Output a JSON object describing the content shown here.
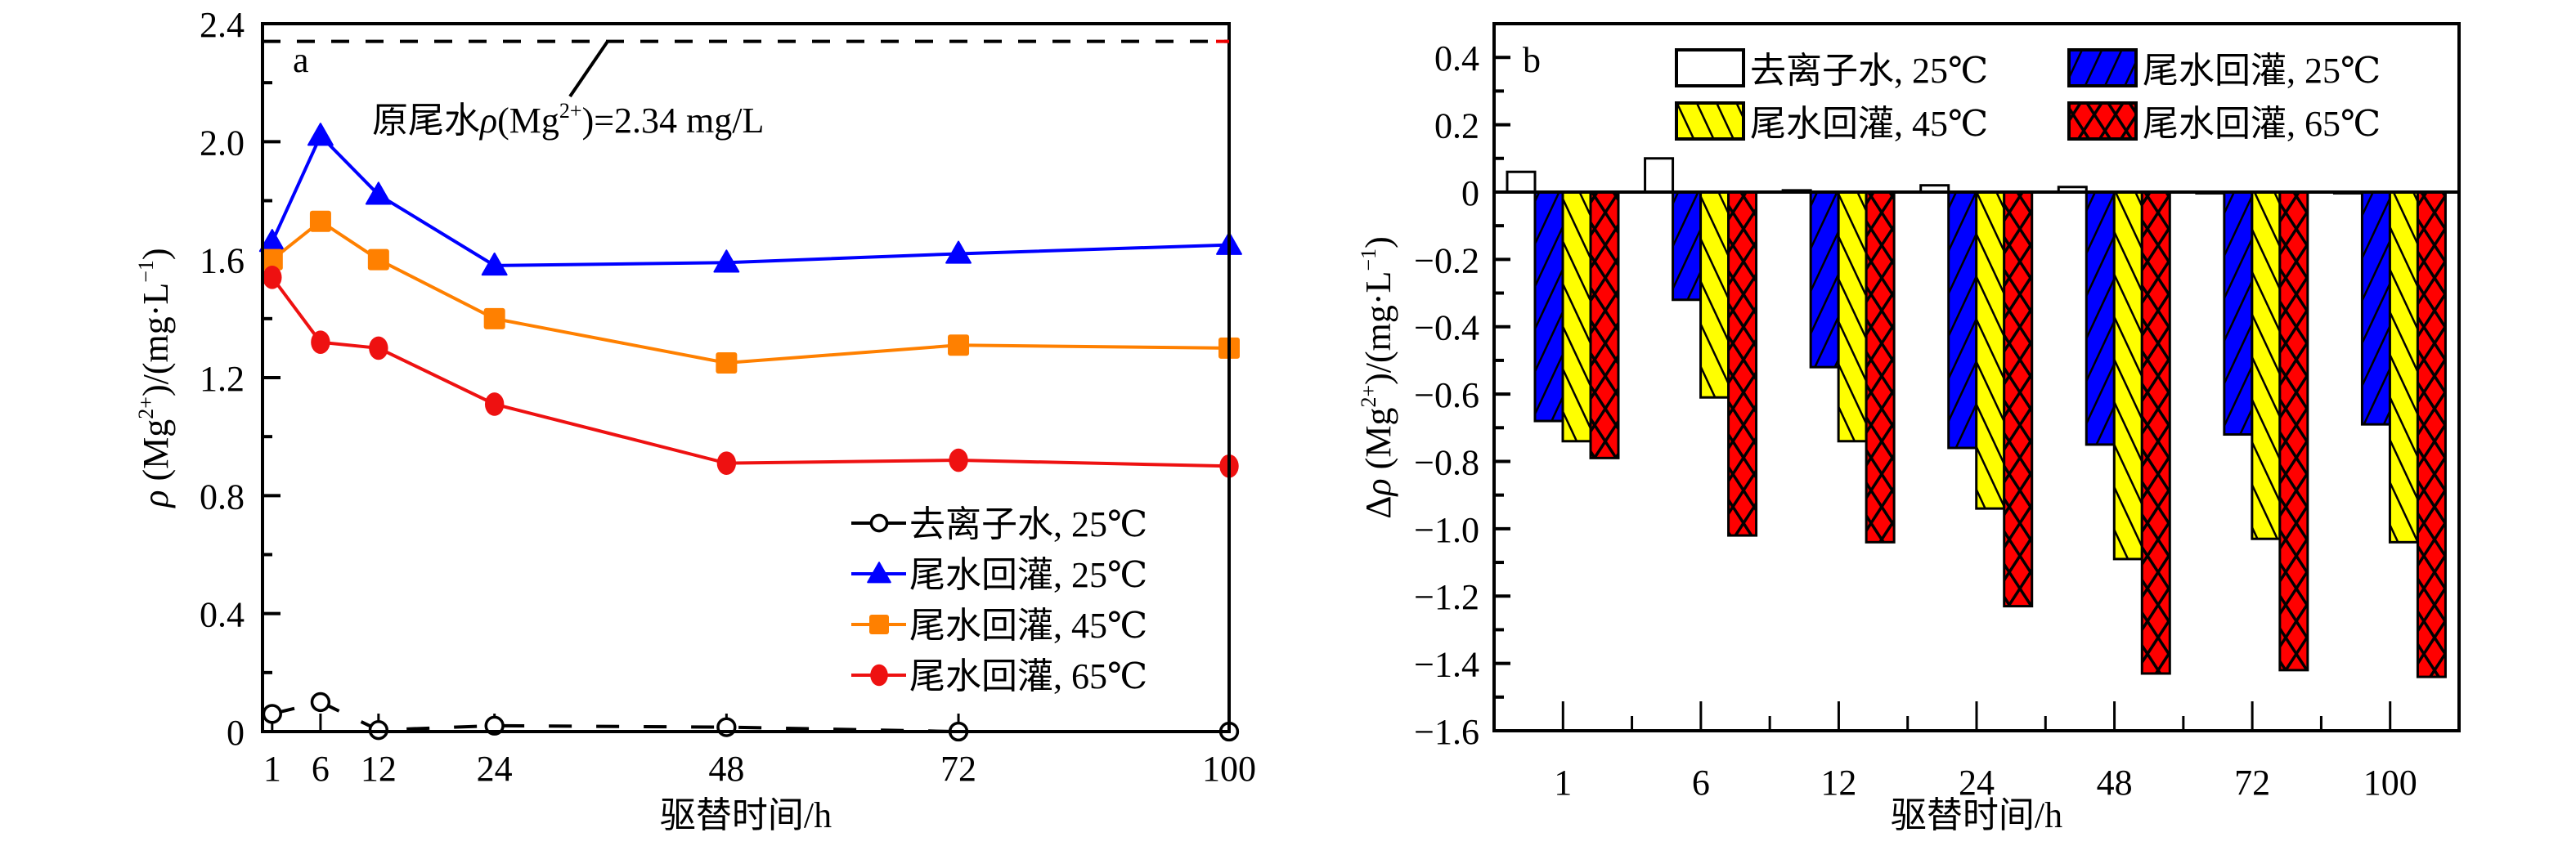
{
  "chart_data": [
    {
      "id": "a",
      "type": "line",
      "panel_label": "a",
      "title": "",
      "xlabel": "驱替时间/h",
      "ylabel_parts": {
        "rho": "ρ",
        "main": " (Mg",
        "sup": "2+",
        "rest": ")/(mg·L",
        "sup2": "−1",
        "close": ")"
      },
      "xlim": [
        0,
        100
      ],
      "ylim": [
        0,
        2.4
      ],
      "x_ticks": [
        1,
        6,
        12,
        24,
        48,
        72,
        100
      ],
      "y_ticks": [
        0,
        0.4,
        0.8,
        1.2,
        1.6,
        2.0,
        2.4
      ],
      "y_tick_labels": [
        "0",
        "0.4",
        "0.8",
        "1.2",
        "1.6",
        "2.0",
        "2.4"
      ],
      "x": [
        1,
        6,
        12,
        24,
        48,
        72,
        100
      ],
      "reference_line": {
        "value": 2.34,
        "style": "dashed",
        "label_prefix": "原尾水",
        "label_rho": "ρ",
        "label_mg": "(Mg",
        "label_sup": "2+",
        "label_suffix": ")=2.34 mg/L"
      },
      "legend_position": "bottom-right",
      "series": [
        {
          "name": "去离子水, 25℃",
          "color": "#000000",
          "marker": "open-circle",
          "values": [
            0.06,
            0.1,
            0.005,
            0.02,
            0.015,
            0.0,
            0.0
          ]
        },
        {
          "name": "尾水回灌, 25℃",
          "color": "#0000ff",
          "marker": "triangle",
          "values": [
            1.66,
            2.02,
            1.82,
            1.58,
            1.59,
            1.62,
            1.65
          ]
        },
        {
          "name": "尾水回灌, 45℃",
          "color": "#ff8000",
          "marker": "square",
          "values": [
            1.6,
            1.73,
            1.6,
            1.4,
            1.25,
            1.31,
            1.3
          ]
        },
        {
          "name": "尾水回灌, 65℃",
          "color": "#ee1111",
          "marker": "circle",
          "values": [
            1.54,
            1.32,
            1.3,
            1.11,
            0.91,
            0.92,
            0.9
          ]
        }
      ]
    },
    {
      "id": "b",
      "type": "bar",
      "panel_label": "b",
      "title": "",
      "xlabel": "驱替时间/h",
      "ylabel_parts": {
        "delta": "Δ",
        "rho": "ρ",
        "main": " (Mg",
        "sup": "2+",
        "rest": ")/(mg·L",
        "sup2": "−1",
        "close": ")"
      },
      "categories": [
        "1",
        "6",
        "12",
        "24",
        "48",
        "72",
        "100"
      ],
      "ylim": [
        -1.6,
        0.5
      ],
      "y_ticks": [
        -1.6,
        -1.4,
        -1.2,
        -1.0,
        -0.8,
        -0.6,
        -0.4,
        -0.2,
        0,
        0.2,
        0.4
      ],
      "y_tick_labels": [
        "-1.6",
        "-1.4",
        "-1.2",
        "-1.0",
        "-0.8",
        "-0.6",
        "-0.4",
        "-0.2",
        "0",
        "0.2",
        "0.4"
      ],
      "legend_position": "top-right",
      "series": [
        {
          "name": "去离子水, 25℃",
          "color": "#ffffff",
          "pattern": "none",
          "values": [
            0.06,
            0.1,
            0.005,
            0.02,
            0.015,
            0.0,
            0.0
          ]
        },
        {
          "name": "尾水回灌, 25℃",
          "color": "#0000ff",
          "pattern": "forward-diagonal",
          "values": [
            -0.68,
            -0.32,
            -0.52,
            -0.76,
            -0.75,
            -0.72,
            -0.69
          ]
        },
        {
          "name": "尾水回灌, 45℃",
          "color": "#ffff00",
          "pattern": "back-diagonal",
          "values": [
            -0.74,
            -0.61,
            -0.74,
            -0.94,
            -1.09,
            -1.03,
            -1.04
          ]
        },
        {
          "name": "尾水回灌, 65℃",
          "color": "#ff0000",
          "pattern": "crosshatch",
          "values": [
            -0.79,
            -1.02,
            -1.04,
            -1.23,
            -1.43,
            -1.42,
            -1.44
          ]
        }
      ],
      "legend_order": [
        0,
        2,
        1,
        3
      ]
    }
  ]
}
